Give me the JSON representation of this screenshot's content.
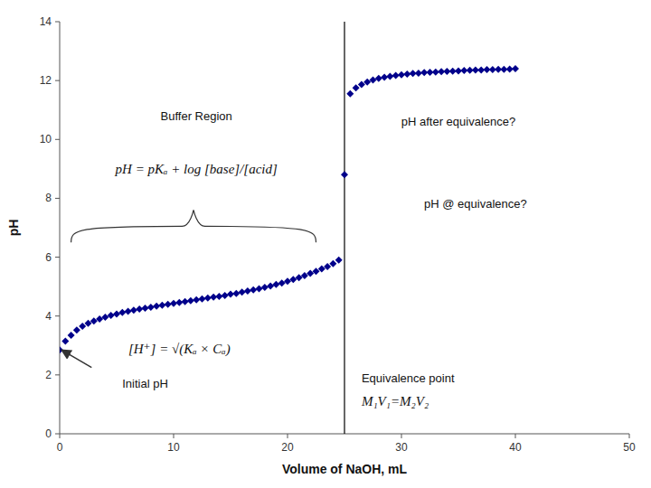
{
  "chart_data": {
    "type": "scatter",
    "xlabel": "Volume of NaOH, mL",
    "ylabel": "pH",
    "xlim": [
      0,
      50
    ],
    "ylim": [
      0,
      14
    ],
    "xticks": [
      0,
      10,
      20,
      30,
      40,
      50
    ],
    "yticks": [
      0,
      2,
      4,
      6,
      8,
      10,
      12,
      14
    ],
    "grid": false,
    "series": [
      {
        "color": "#00008B",
        "marker": "diamond",
        "x": [
          0,
          0.5,
          1.0,
          1.5,
          2.0,
          2.5,
          3.0,
          3.5,
          4.0,
          4.5,
          5.0,
          5.5,
          6.0,
          6.5,
          7.0,
          7.5,
          8.0,
          8.5,
          9.0,
          9.5,
          10.0,
          10.5,
          11.0,
          11.5,
          12.0,
          12.5,
          13.0,
          13.5,
          14.0,
          14.5,
          15.0,
          15.5,
          16.0,
          16.5,
          17.0,
          17.5,
          18.0,
          18.5,
          19.0,
          19.5,
          20.0,
          20.5,
          21.0,
          21.5,
          22.0,
          22.5,
          23.0,
          23.5,
          24.0,
          24.5
        ],
        "values": [
          2.85,
          3.15,
          3.35,
          3.52,
          3.65,
          3.75,
          3.83,
          3.9,
          3.96,
          4.02,
          4.07,
          4.12,
          4.16,
          4.2,
          4.24,
          4.27,
          4.3,
          4.34,
          4.37,
          4.4,
          4.43,
          4.46,
          4.49,
          4.52,
          4.55,
          4.58,
          4.61,
          4.64,
          4.67,
          4.7,
          4.74,
          4.77,
          4.81,
          4.85,
          4.89,
          4.93,
          4.97,
          5.02,
          5.07,
          5.12,
          5.18,
          5.24,
          5.3,
          5.37,
          5.45,
          5.52,
          5.6,
          5.68,
          5.78,
          5.9
        ]
      },
      {
        "color": "#00008B",
        "marker": "diamond",
        "x": [
          25
        ],
        "values": [
          8.8
        ]
      },
      {
        "color": "#00008B",
        "marker": "diamond",
        "x": [
          25.5,
          26.0,
          26.5,
          27.0,
          27.5,
          28.0,
          28.5,
          29.0,
          29.5,
          30.0,
          30.5,
          31.0,
          31.5,
          32.0,
          32.5,
          33.0,
          33.5,
          34.0,
          34.5,
          35.0,
          35.5,
          36.0,
          36.5,
          37.0,
          37.5,
          38.0,
          38.5,
          39.0,
          39.5,
          40.0
        ],
        "values": [
          11.55,
          11.75,
          11.87,
          11.95,
          12.02,
          12.07,
          12.11,
          12.14,
          12.17,
          12.2,
          12.22,
          12.24,
          12.25,
          12.27,
          12.28,
          12.29,
          12.3,
          12.31,
          12.32,
          12.33,
          12.34,
          12.35,
          12.36,
          12.36,
          12.37,
          12.37,
          12.38,
          12.38,
          12.39,
          12.4
        ]
      }
    ],
    "reference_lines": [
      {
        "x": 25,
        "color": "#000000"
      }
    ],
    "annotations": [
      "Buffer Region",
      "pH = pKₐ + log [base]/[acid]",
      "pH after equivalence?",
      "pH @ equivalence?",
      "Equivalence point",
      "M₁V₁=M₂V₂",
      "[H⁺] = √(Kₐ × Cₐ)",
      "Initial pH"
    ]
  }
}
